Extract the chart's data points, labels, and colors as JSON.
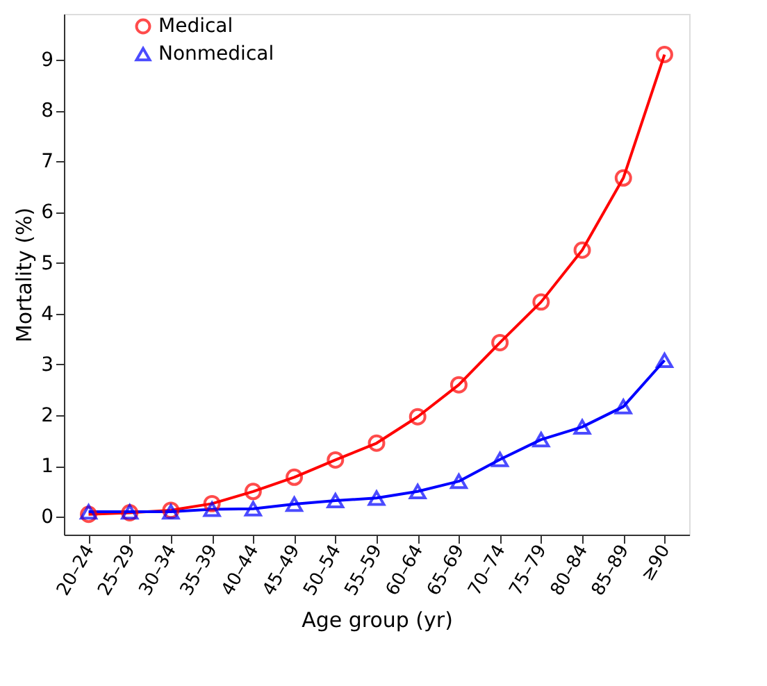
{
  "chart_data": {
    "type": "line",
    "xlabel": "Age group (yr)",
    "ylabel": "Mortality (%)",
    "categories": [
      "20–24",
      "25–29",
      "30–34",
      "35–39",
      "40–44",
      "45–49",
      "50–54",
      "55–59",
      "60–64",
      "65–69",
      "70–74",
      "75–79",
      "80–84",
      "85–89",
      "≥90"
    ],
    "series": [
      {
        "name": "Medical",
        "color": "#ff0000",
        "marker": "circle",
        "values": [
          0.05,
          0.08,
          0.13,
          0.26,
          0.5,
          0.78,
          1.12,
          1.45,
          1.97,
          2.6,
          3.43,
          4.23,
          5.25,
          6.67,
          9.1
        ]
      },
      {
        "name": "Nonmedical",
        "color": "#0000ff",
        "marker": "triangle",
        "values": [
          0.1,
          0.1,
          0.1,
          0.15,
          0.16,
          0.25,
          0.32,
          0.37,
          0.5,
          0.7,
          1.13,
          1.52,
          1.77,
          2.17,
          3.08
        ]
      }
    ],
    "ylim": [
      -0.35,
      9.9
    ],
    "yticks": [
      0,
      1,
      2,
      3,
      4,
      5,
      6,
      7,
      8,
      9
    ],
    "grid": false,
    "legend": "top left",
    "line_style": "solid"
  }
}
